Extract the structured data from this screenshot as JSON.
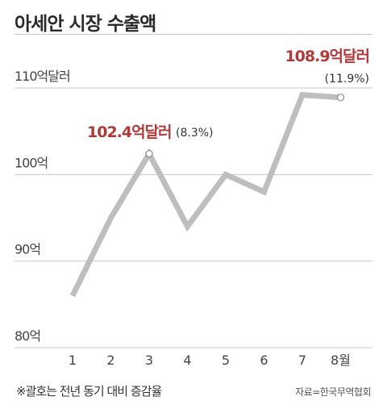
{
  "header": {
    "title": "아세안 시장 수출액"
  },
  "footer": {
    "note": "※괄호는 전년 동기 대비 증감율",
    "source": "자료=한국무역협회"
  },
  "colors": {
    "line": "#bcbec0",
    "grid": "#c8c8c8",
    "highlight": "#b03a3a"
  },
  "chart_data": {
    "type": "line",
    "title": "아세안 시장 수출액",
    "categories": [
      "1",
      "2",
      "3",
      "4",
      "5",
      "6",
      "7",
      "8월"
    ],
    "values": [
      86,
      95,
      102.4,
      94,
      100,
      98,
      109.2,
      108.9
    ],
    "ylim": [
      80,
      110
    ],
    "yticks": [
      {
        "value": 110,
        "label": "110억달러"
      },
      {
        "value": 100,
        "label": "100억"
      },
      {
        "value": 90,
        "label": "90억"
      },
      {
        "value": 80,
        "label": "80억"
      }
    ],
    "grid": true,
    "annotations": [
      {
        "index": 2,
        "value_label": "102.4억달러",
        "pct_label": "(8.3%)"
      },
      {
        "index": 7,
        "value_label": "108.9억달러",
        "pct_label": "(11.9%)"
      }
    ]
  }
}
